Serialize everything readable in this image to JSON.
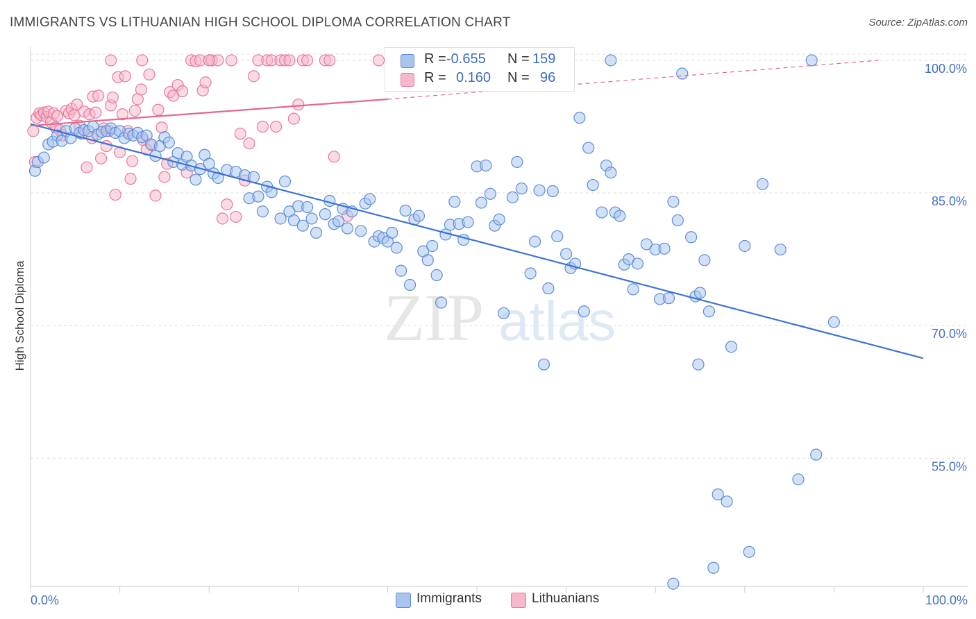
{
  "title": "IMMIGRANTS VS LITHUANIAN HIGH SCHOOL DIPLOMA CORRELATION CHART",
  "source": "Source: ZipAtlas.com",
  "watermark": {
    "zip": "ZIP",
    "atlas": "atlas"
  },
  "legend": {
    "r_label": "R =",
    "n_label": "N =",
    "rows": [
      {
        "r": "-0.655",
        "n": "159",
        "color": "#a8c4ef",
        "border": "#5b8dd9"
      },
      {
        "r": "0.160",
        "n": "96",
        "color": "#f6b8ca",
        "border": "#e8799c"
      }
    ]
  },
  "bottom_legend": [
    {
      "label": "Immigrants",
      "color": "#a8c4ef",
      "border": "#5b8dd9"
    },
    {
      "label": "Lithuanians",
      "color": "#f6b8ca",
      "border": "#e8799c"
    }
  ],
  "colors": {
    "blue": "#3b74d1",
    "pink": "#e2678f"
  },
  "chart_data": {
    "type": "scatter",
    "title": "IMMIGRANTS VS LITHUANIAN HIGH SCHOOL DIPLOMA CORRELATION CHART",
    "xlabel": "",
    "ylabel": "High School Diploma",
    "xlim": [
      0,
      100
    ],
    "ylim": [
      40.5,
      100.7
    ],
    "x_tick_labels": [
      "0.0%",
      "100.0%"
    ],
    "y_ticks": [
      55,
      70,
      85,
      100
    ],
    "y_tick_labels": [
      "55.0%",
      "70.0%",
      "85.0%",
      "100.0%"
    ],
    "grid": true,
    "legend_position": "top-center",
    "series": [
      {
        "name": "Immigrants",
        "r": -0.655,
        "n": 159,
        "trend": {
          "x0": 0,
          "y0": 92.8,
          "x1": 100,
          "y1": 66.3
        },
        "points": [
          [
            0.5,
            87.5
          ],
          [
            0.8,
            88.5
          ],
          [
            1.5,
            89.0
          ],
          [
            2,
            90.5
          ],
          [
            2.5,
            90.8
          ],
          [
            3,
            91.5
          ],
          [
            3.5,
            90.9
          ],
          [
            4,
            92.0
          ],
          [
            4.5,
            91.2
          ],
          [
            5,
            92.3
          ],
          [
            5.5,
            91.8
          ],
          [
            6,
            92.1
          ],
          [
            6.5,
            92.0
          ],
          [
            7,
            92.5
          ],
          [
            7.5,
            91.6
          ],
          [
            8,
            91.9
          ],
          [
            8.5,
            92.0
          ],
          [
            9,
            92.3
          ],
          [
            9.5,
            91.8
          ],
          [
            10,
            92.0
          ],
          [
            10.5,
            91.2
          ],
          [
            11,
            91.7
          ],
          [
            11.5,
            91.5
          ],
          [
            12,
            91.8
          ],
          [
            12.5,
            91.3
          ],
          [
            13,
            91.5
          ],
          [
            13.5,
            90.5
          ],
          [
            14,
            89.2
          ],
          [
            14.5,
            90.3
          ],
          [
            15,
            91.3
          ],
          [
            15.5,
            90.7
          ],
          [
            16,
            88.5
          ],
          [
            16.5,
            89.5
          ],
          [
            17,
            88.2
          ],
          [
            17.5,
            89.1
          ],
          [
            18,
            88.1
          ],
          [
            18.5,
            86.5
          ],
          [
            19,
            87.7
          ],
          [
            19.5,
            89.3
          ],
          [
            20,
            88.3
          ],
          [
            20.5,
            87.2
          ],
          [
            21,
            86.7
          ],
          [
            22,
            87.6
          ],
          [
            23,
            87.4
          ],
          [
            24,
            87.0
          ],
          [
            24.5,
            84.4
          ],
          [
            25,
            86.8
          ],
          [
            25.5,
            84.6
          ],
          [
            26,
            82.9
          ],
          [
            26.5,
            85.7
          ],
          [
            27,
            85.1
          ],
          [
            28,
            82.1
          ],
          [
            28.5,
            86.3
          ],
          [
            29,
            82.9
          ],
          [
            29.5,
            81.9
          ],
          [
            30,
            83.5
          ],
          [
            30.5,
            81.3
          ],
          [
            31,
            83.4
          ],
          [
            31.5,
            82.1
          ],
          [
            32,
            80.5
          ],
          [
            33,
            82.6
          ],
          [
            33.5,
            84.1
          ],
          [
            34,
            81.5
          ],
          [
            34.5,
            81.8
          ],
          [
            35,
            83.2
          ],
          [
            35.5,
            81.0
          ],
          [
            36,
            82.9
          ],
          [
            37,
            80.7
          ],
          [
            37.5,
            83.8
          ],
          [
            38,
            84.3
          ],
          [
            38.5,
            79.5
          ],
          [
            39,
            80.1
          ],
          [
            39.5,
            79.9
          ],
          [
            40,
            79.5
          ],
          [
            40.5,
            80.5
          ],
          [
            41,
            78.8
          ],
          [
            41.5,
            76.2
          ],
          [
            42,
            83.0
          ],
          [
            42.5,
            74.6
          ],
          [
            43,
            82.0
          ],
          [
            43.5,
            82.4
          ],
          [
            44,
            78.4
          ],
          [
            44.5,
            77.4
          ],
          [
            45,
            79.0
          ],
          [
            45.5,
            75.7
          ],
          [
            46,
            72.6
          ],
          [
            46.5,
            80.3
          ],
          [
            47,
            81.4
          ],
          [
            47.5,
            84.0
          ],
          [
            48,
            81.5
          ],
          [
            48.5,
            79.7
          ],
          [
            49,
            81.7
          ],
          [
            50,
            88.0
          ],
          [
            50.5,
            83.9
          ],
          [
            51,
            88.1
          ],
          [
            51.5,
            84.9
          ],
          [
            52,
            81.3
          ],
          [
            52.5,
            82.0
          ],
          [
            53,
            71.4
          ],
          [
            54,
            84.5
          ],
          [
            54.5,
            88.5
          ],
          [
            55,
            85.5
          ],
          [
            56,
            75.9
          ],
          [
            56.5,
            79.5
          ],
          [
            57,
            85.3
          ],
          [
            57.5,
            65.6
          ],
          [
            58,
            74.2
          ],
          [
            58.5,
            85.2
          ],
          [
            59,
            80.1
          ],
          [
            60,
            78.1
          ],
          [
            60.5,
            76.5
          ],
          [
            61,
            77.0
          ],
          [
            61.5,
            93.5
          ],
          [
            62,
            71.6
          ],
          [
            62.5,
            90.1
          ],
          [
            63,
            85.9
          ],
          [
            64,
            82.8
          ],
          [
            64.5,
            88.1
          ],
          [
            65,
            87.3
          ],
          [
            65.5,
            82.8
          ],
          [
            66,
            82.4
          ],
          [
            66.5,
            76.9
          ],
          [
            67,
            77.5
          ],
          [
            67.5,
            74.1
          ],
          [
            68,
            77.0
          ],
          [
            69,
            79.2
          ],
          [
            70,
            78.6
          ],
          [
            70.5,
            73.0
          ],
          [
            71,
            78.7
          ],
          [
            71.5,
            73.1
          ],
          [
            72,
            84.0
          ],
          [
            72.5,
            81.9
          ],
          [
            73,
            98.5
          ],
          [
            74,
            80.0
          ],
          [
            74.5,
            73.3
          ],
          [
            74.8,
            65.6
          ],
          [
            75,
            73.7
          ],
          [
            75.5,
            77.4
          ],
          [
            76,
            71.6
          ],
          [
            77,
            50.9
          ],
          [
            78,
            50.1
          ],
          [
            78.5,
            67.6
          ],
          [
            80,
            79.0
          ],
          [
            80.5,
            44.4
          ],
          [
            82,
            86.0
          ],
          [
            84,
            78.6
          ],
          [
            86,
            52.6
          ],
          [
            88,
            55.4
          ],
          [
            90,
            70.4
          ],
          [
            65,
            100.0
          ],
          [
            72,
            40.8
          ],
          [
            76.5,
            42.6
          ],
          [
            87.5,
            100.0
          ]
        ]
      },
      {
        "name": "Lithuanians",
        "r": 0.16,
        "n": 96,
        "trend": {
          "x0": 0,
          "y0": 92.6,
          "x1": 40,
          "y1": 95.6
        },
        "trend_dashed": {
          "x0": 40,
          "y0": 95.6,
          "x1": 95,
          "y1": 100.0
        },
        "points": [
          [
            0.3,
            92.0
          ],
          [
            0.5,
            88.5
          ],
          [
            0.7,
            93.5
          ],
          [
            1,
            94.0
          ],
          [
            1.2,
            93.8
          ],
          [
            1.5,
            94.1
          ],
          [
            1.8,
            93.6
          ],
          [
            2,
            94.2
          ],
          [
            2.3,
            93.0
          ],
          [
            2.6,
            94.0
          ],
          [
            2.8,
            92.4
          ],
          [
            3,
            93.7
          ],
          [
            3.3,
            92.1
          ],
          [
            3.6,
            91.5
          ],
          [
            4,
            94.3
          ],
          [
            4.3,
            94.0
          ],
          [
            4.6,
            94.5
          ],
          [
            4.9,
            93.8
          ],
          [
            5.2,
            95.0
          ],
          [
            5.5,
            92.6
          ],
          [
            5.8,
            91.7
          ],
          [
            6,
            94.2
          ],
          [
            6.3,
            87.9
          ],
          [
            6.6,
            93.9
          ],
          [
            6.9,
            91.2
          ],
          [
            7,
            95.9
          ],
          [
            7.3,
            94.1
          ],
          [
            7.6,
            96.0
          ],
          [
            7.9,
            88.9
          ],
          [
            8.2,
            92.3
          ],
          [
            8.5,
            90.3
          ],
          [
            8.8,
            92.0
          ],
          [
            9,
            94.9
          ],
          [
            9.2,
            95.8
          ],
          [
            9.5,
            84.8
          ],
          [
            9.8,
            98.1
          ],
          [
            10,
            89.6
          ],
          [
            10.3,
            93.9
          ],
          [
            10.6,
            98.2
          ],
          [
            10.9,
            92.0
          ],
          [
            11.2,
            86.6
          ],
          [
            11.4,
            88.6
          ],
          [
            11.7,
            94.3
          ],
          [
            12,
            95.6
          ],
          [
            12.4,
            96.7
          ],
          [
            12.6,
            91.0
          ],
          [
            13,
            89.9
          ],
          [
            13.3,
            98.4
          ],
          [
            13.6,
            90.4
          ],
          [
            14,
            84.7
          ],
          [
            14.3,
            94.4
          ],
          [
            14.7,
            92.4
          ],
          [
            15,
            86.8
          ],
          [
            15.3,
            88.3
          ],
          [
            15.6,
            96.4
          ],
          [
            16,
            96.0
          ],
          [
            16.5,
            97.2
          ],
          [
            17,
            96.5
          ],
          [
            17.5,
            87.3
          ],
          [
            18,
            100.0
          ],
          [
            18.5,
            99.9
          ],
          [
            19,
            100.0
          ],
          [
            19.3,
            96.6
          ],
          [
            19.6,
            97.5
          ],
          [
            20,
            100.0
          ],
          [
            20.3,
            100.0
          ],
          [
            21,
            100.0
          ],
          [
            21.5,
            82.1
          ],
          [
            22,
            83.7
          ],
          [
            22.5,
            100.0
          ],
          [
            23,
            82.3
          ],
          [
            23.5,
            91.7
          ],
          [
            24,
            86.4
          ],
          [
            24.5,
            90.6
          ],
          [
            25,
            98.2
          ],
          [
            25.5,
            100.0
          ],
          [
            26,
            92.5
          ],
          [
            26.5,
            100.0
          ],
          [
            27,
            100.0
          ],
          [
            27.5,
            92.5
          ],
          [
            28,
            100.0
          ],
          [
            28.5,
            100.0
          ],
          [
            29,
            100.0
          ],
          [
            29.5,
            93.4
          ],
          [
            30,
            95.0
          ],
          [
            30.5,
            100.0
          ],
          [
            31,
            100.0
          ],
          [
            33,
            100.0
          ],
          [
            33.5,
            100.0
          ],
          [
            34,
            89.1
          ],
          [
            35.5,
            82.4
          ],
          [
            39,
            100.0
          ],
          [
            9,
            100.0
          ],
          [
            12.5,
            100.0
          ],
          [
            20,
            100.0
          ]
        ]
      }
    ]
  }
}
